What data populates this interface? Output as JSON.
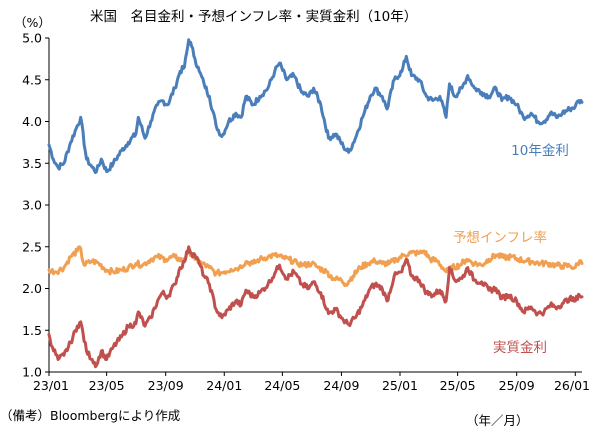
{
  "chart_data": {
    "type": "line",
    "title": "米国　名目金利・予想インフレ率・実質金利（10年）",
    "ylabel": "（%）",
    "xlabel": "（年／月）",
    "note": "（備考）Bloombergにより作成",
    "ylim": [
      1.0,
      5.0
    ],
    "yticks": [
      "1.0",
      "1.5",
      "2.0",
      "2.5",
      "3.0",
      "3.5",
      "4.0",
      "4.5",
      "5.0"
    ],
    "xlim": [
      "2023-01-01",
      "2026-01-15"
    ],
    "xticks": [
      {
        "date": "2023-01-01",
        "label": "23/01"
      },
      {
        "date": "2023-05-01",
        "label": "23/05"
      },
      {
        "date": "2023-09-01",
        "label": "23/09"
      },
      {
        "date": "2024-01-01",
        "label": "24/01"
      },
      {
        "date": "2024-05-01",
        "label": "24/05"
      },
      {
        "date": "2024-09-01",
        "label": "24/09"
      },
      {
        "date": "2025-01-01",
        "label": "25/01"
      },
      {
        "date": "2025-05-01",
        "label": "25/05"
      },
      {
        "date": "2025-09-01",
        "label": "25/09"
      },
      {
        "date": "2026-01-01",
        "label": "26/01"
      }
    ],
    "grid": false,
    "series": [
      {
        "name": "10年金利",
        "color": "#4a7ebb",
        "points": [
          [
            "2023-01-01",
            3.72
          ],
          [
            "2023-01-10",
            3.55
          ],
          [
            "2023-01-20",
            3.45
          ],
          [
            "2023-02-01",
            3.5
          ],
          [
            "2023-02-15",
            3.75
          ],
          [
            "2023-03-01",
            3.95
          ],
          [
            "2023-03-08",
            4.05
          ],
          [
            "2023-03-20",
            3.55
          ],
          [
            "2023-04-01",
            3.45
          ],
          [
            "2023-04-10",
            3.4
          ],
          [
            "2023-04-20",
            3.55
          ],
          [
            "2023-05-01",
            3.4
          ],
          [
            "2023-05-15",
            3.5
          ],
          [
            "2023-06-01",
            3.65
          ],
          [
            "2023-06-15",
            3.75
          ],
          [
            "2023-07-01",
            3.85
          ],
          [
            "2023-07-06",
            4.05
          ],
          [
            "2023-07-20",
            3.8
          ],
          [
            "2023-08-01",
            4.0
          ],
          [
            "2023-08-15",
            4.2
          ],
          [
            "2023-08-25",
            4.25
          ],
          [
            "2023-09-05",
            4.2
          ],
          [
            "2023-09-20",
            4.4
          ],
          [
            "2023-10-01",
            4.6
          ],
          [
            "2023-10-10",
            4.65
          ],
          [
            "2023-10-19",
            4.98
          ],
          [
            "2023-10-25",
            4.9
          ],
          [
            "2023-11-01",
            4.75
          ],
          [
            "2023-11-10",
            4.6
          ],
          [
            "2023-11-20",
            4.45
          ],
          [
            "2023-12-01",
            4.3
          ],
          [
            "2023-12-15",
            3.95
          ],
          [
            "2023-12-27",
            3.82
          ],
          [
            "2024-01-10",
            4.0
          ],
          [
            "2024-01-25",
            4.1
          ],
          [
            "2024-02-05",
            4.05
          ],
          [
            "2024-02-15",
            4.3
          ],
          [
            "2024-03-01",
            4.2
          ],
          [
            "2024-03-15",
            4.3
          ],
          [
            "2024-04-01",
            4.4
          ],
          [
            "2024-04-15",
            4.6
          ],
          [
            "2024-04-25",
            4.7
          ],
          [
            "2024-05-10",
            4.5
          ],
          [
            "2024-05-25",
            4.55
          ],
          [
            "2024-06-10",
            4.35
          ],
          [
            "2024-06-25",
            4.3
          ],
          [
            "2024-07-05",
            4.4
          ],
          [
            "2024-07-20",
            4.2
          ],
          [
            "2024-08-05",
            3.8
          ],
          [
            "2024-08-20",
            3.85
          ],
          [
            "2024-09-05",
            3.7
          ],
          [
            "2024-09-16",
            3.63
          ],
          [
            "2024-09-30",
            3.8
          ],
          [
            "2024-10-15",
            4.05
          ],
          [
            "2024-10-31",
            4.3
          ],
          [
            "2024-11-10",
            4.4
          ],
          [
            "2024-11-25",
            4.3
          ],
          [
            "2024-12-05",
            4.15
          ],
          [
            "2024-12-20",
            4.5
          ],
          [
            "2025-01-05",
            4.6
          ],
          [
            "2025-01-14",
            4.78
          ],
          [
            "2025-01-25",
            4.55
          ],
          [
            "2025-02-10",
            4.5
          ],
          [
            "2025-02-25",
            4.3
          ],
          [
            "2025-03-10",
            4.25
          ],
          [
            "2025-03-25",
            4.3
          ],
          [
            "2025-04-07",
            4.05
          ],
          [
            "2025-04-14",
            4.45
          ],
          [
            "2025-04-25",
            4.3
          ],
          [
            "2025-05-10",
            4.4
          ],
          [
            "2025-05-22",
            4.55
          ],
          [
            "2025-06-05",
            4.4
          ],
          [
            "2025-06-20",
            4.35
          ],
          [
            "2025-07-05",
            4.3
          ],
          [
            "2025-07-20",
            4.4
          ],
          [
            "2025-08-01",
            4.25
          ],
          [
            "2025-08-15",
            4.3
          ],
          [
            "2025-09-01",
            4.2
          ],
          [
            "2025-09-15",
            4.05
          ],
          [
            "2025-10-01",
            4.1
          ],
          [
            "2025-10-15",
            4.0
          ],
          [
            "2025-10-28",
            4.0
          ],
          [
            "2025-11-10",
            4.1
          ],
          [
            "2025-11-25",
            4.05
          ],
          [
            "2025-12-05",
            4.1
          ],
          [
            "2025-12-20",
            4.15
          ],
          [
            "2026-01-01",
            4.18
          ],
          [
            "2026-01-08",
            4.25
          ],
          [
            "2026-01-15",
            4.23
          ]
        ]
      },
      {
        "name": "予想インフレ率",
        "color": "#f0a050",
        "points": [
          [
            "2023-01-01",
            2.22
          ],
          [
            "2023-01-15",
            2.2
          ],
          [
            "2023-02-01",
            2.25
          ],
          [
            "2023-02-15",
            2.38
          ],
          [
            "2023-03-01",
            2.45
          ],
          [
            "2023-03-06",
            2.5
          ],
          [
            "2023-03-15",
            2.28
          ],
          [
            "2023-04-01",
            2.33
          ],
          [
            "2023-04-15",
            2.3
          ],
          [
            "2023-05-01",
            2.22
          ],
          [
            "2023-05-15",
            2.2
          ],
          [
            "2023-06-01",
            2.22
          ],
          [
            "2023-06-15",
            2.25
          ],
          [
            "2023-07-01",
            2.3
          ],
          [
            "2023-07-15",
            2.28
          ],
          [
            "2023-08-01",
            2.35
          ],
          [
            "2023-08-15",
            2.38
          ],
          [
            "2023-09-01",
            2.35
          ],
          [
            "2023-09-20",
            2.38
          ],
          [
            "2023-10-05",
            2.33
          ],
          [
            "2023-10-20",
            2.45
          ],
          [
            "2023-11-01",
            2.35
          ],
          [
            "2023-11-15",
            2.3
          ],
          [
            "2023-12-01",
            2.25
          ],
          [
            "2023-12-15",
            2.18
          ],
          [
            "2024-01-01",
            2.2
          ],
          [
            "2024-01-15",
            2.23
          ],
          [
            "2024-02-01",
            2.25
          ],
          [
            "2024-02-15",
            2.32
          ],
          [
            "2024-03-01",
            2.3
          ],
          [
            "2024-03-15",
            2.35
          ],
          [
            "2024-04-01",
            2.38
          ],
          [
            "2024-04-15",
            2.4
          ],
          [
            "2024-05-01",
            2.37
          ],
          [
            "2024-05-15",
            2.35
          ],
          [
            "2024-06-01",
            2.3
          ],
          [
            "2024-06-15",
            2.28
          ],
          [
            "2024-07-01",
            2.3
          ],
          [
            "2024-07-15",
            2.25
          ],
          [
            "2024-08-01",
            2.2
          ],
          [
            "2024-08-15",
            2.12
          ],
          [
            "2024-09-01",
            2.1
          ],
          [
            "2024-09-10",
            2.05
          ],
          [
            "2024-09-25",
            2.15
          ],
          [
            "2024-10-10",
            2.25
          ],
          [
            "2024-10-25",
            2.3
          ],
          [
            "2024-11-10",
            2.33
          ],
          [
            "2024-11-25",
            2.3
          ],
          [
            "2024-12-10",
            2.3
          ],
          [
            "2024-12-25",
            2.35
          ],
          [
            "2025-01-10",
            2.4
          ],
          [
            "2025-01-25",
            2.43
          ],
          [
            "2025-02-10",
            2.42
          ],
          [
            "2025-02-20",
            2.45
          ],
          [
            "2025-03-05",
            2.35
          ],
          [
            "2025-03-20",
            2.33
          ],
          [
            "2025-04-07",
            2.2
          ],
          [
            "2025-04-20",
            2.25
          ],
          [
            "2025-05-05",
            2.28
          ],
          [
            "2025-05-20",
            2.35
          ],
          [
            "2025-06-05",
            2.3
          ],
          [
            "2025-06-20",
            2.28
          ],
          [
            "2025-07-05",
            2.35
          ],
          [
            "2025-07-20",
            2.4
          ],
          [
            "2025-08-05",
            2.37
          ],
          [
            "2025-08-20",
            2.38
          ],
          [
            "2025-09-05",
            2.35
          ],
          [
            "2025-09-20",
            2.33
          ],
          [
            "2025-10-05",
            2.32
          ],
          [
            "2025-10-20",
            2.3
          ],
          [
            "2025-11-05",
            2.3
          ],
          [
            "2025-11-20",
            2.28
          ],
          [
            "2025-12-05",
            2.27
          ],
          [
            "2025-12-20",
            2.27
          ],
          [
            "2026-01-01",
            2.25
          ],
          [
            "2026-01-10",
            2.33
          ],
          [
            "2026-01-15",
            2.3
          ]
        ]
      },
      {
        "name": "実質金利",
        "color": "#c0504d",
        "points": [
          [
            "2023-01-01",
            1.45
          ],
          [
            "2023-01-08",
            1.3
          ],
          [
            "2023-01-20",
            1.15
          ],
          [
            "2023-02-01",
            1.2
          ],
          [
            "2023-02-15",
            1.35
          ],
          [
            "2023-03-01",
            1.55
          ],
          [
            "2023-03-08",
            1.6
          ],
          [
            "2023-03-20",
            1.25
          ],
          [
            "2023-04-01",
            1.15
          ],
          [
            "2023-04-10",
            1.08
          ],
          [
            "2023-04-20",
            1.25
          ],
          [
            "2023-05-01",
            1.15
          ],
          [
            "2023-05-15",
            1.3
          ],
          [
            "2023-06-01",
            1.42
          ],
          [
            "2023-06-15",
            1.55
          ],
          [
            "2023-07-01",
            1.58
          ],
          [
            "2023-07-06",
            1.72
          ],
          [
            "2023-07-20",
            1.55
          ],
          [
            "2023-08-01",
            1.65
          ],
          [
            "2023-08-15",
            1.85
          ],
          [
            "2023-08-25",
            1.95
          ],
          [
            "2023-09-05",
            1.9
          ],
          [
            "2023-09-20",
            2.05
          ],
          [
            "2023-10-01",
            2.25
          ],
          [
            "2023-10-10",
            2.32
          ],
          [
            "2023-10-19",
            2.5
          ],
          [
            "2023-10-25",
            2.42
          ],
          [
            "2023-11-01",
            2.4
          ],
          [
            "2023-11-10",
            2.3
          ],
          [
            "2023-11-20",
            2.15
          ],
          [
            "2023-12-01",
            2.05
          ],
          [
            "2023-12-15",
            1.75
          ],
          [
            "2023-12-27",
            1.65
          ],
          [
            "2024-01-10",
            1.75
          ],
          [
            "2024-01-25",
            1.85
          ],
          [
            "2024-02-05",
            1.8
          ],
          [
            "2024-02-15",
            1.98
          ],
          [
            "2024-03-01",
            1.9
          ],
          [
            "2024-03-15",
            1.95
          ],
          [
            "2024-04-01",
            2.05
          ],
          [
            "2024-04-15",
            2.18
          ],
          [
            "2024-04-25",
            2.28
          ],
          [
            "2024-05-10",
            2.12
          ],
          [
            "2024-05-25",
            2.2
          ],
          [
            "2024-06-10",
            2.05
          ],
          [
            "2024-06-25",
            2.0
          ],
          [
            "2024-07-05",
            2.08
          ],
          [
            "2024-07-20",
            1.95
          ],
          [
            "2024-08-05",
            1.7
          ],
          [
            "2024-08-20",
            1.75
          ],
          [
            "2024-09-05",
            1.62
          ],
          [
            "2024-09-16",
            1.57
          ],
          [
            "2024-09-30",
            1.65
          ],
          [
            "2024-10-15",
            1.8
          ],
          [
            "2024-10-31",
            2.0
          ],
          [
            "2024-11-10",
            2.05
          ],
          [
            "2024-11-25",
            2.0
          ],
          [
            "2024-12-05",
            1.85
          ],
          [
            "2024-12-20",
            2.15
          ],
          [
            "2025-01-05",
            2.2
          ],
          [
            "2025-01-14",
            2.35
          ],
          [
            "2025-01-25",
            2.15
          ],
          [
            "2025-02-10",
            2.1
          ],
          [
            "2025-02-25",
            1.95
          ],
          [
            "2025-03-10",
            1.92
          ],
          [
            "2025-03-25",
            1.98
          ],
          [
            "2025-04-07",
            1.85
          ],
          [
            "2025-04-14",
            2.25
          ],
          [
            "2025-04-25",
            2.1
          ],
          [
            "2025-05-10",
            2.12
          ],
          [
            "2025-05-22",
            2.25
          ],
          [
            "2025-06-05",
            2.1
          ],
          [
            "2025-06-20",
            2.08
          ],
          [
            "2025-07-05",
            1.98
          ],
          [
            "2025-07-20",
            2.0
          ],
          [
            "2025-08-01",
            1.88
          ],
          [
            "2025-08-15",
            1.92
          ],
          [
            "2025-09-01",
            1.85
          ],
          [
            "2025-09-15",
            1.72
          ],
          [
            "2025-10-01",
            1.78
          ],
          [
            "2025-10-15",
            1.7
          ],
          [
            "2025-10-28",
            1.72
          ],
          [
            "2025-11-10",
            1.8
          ],
          [
            "2025-11-25",
            1.78
          ],
          [
            "2025-12-05",
            1.82
          ],
          [
            "2025-12-20",
            1.88
          ],
          [
            "2026-01-01",
            1.85
          ],
          [
            "2026-01-08",
            1.93
          ],
          [
            "2026-01-15",
            1.9
          ]
        ]
      }
    ]
  }
}
